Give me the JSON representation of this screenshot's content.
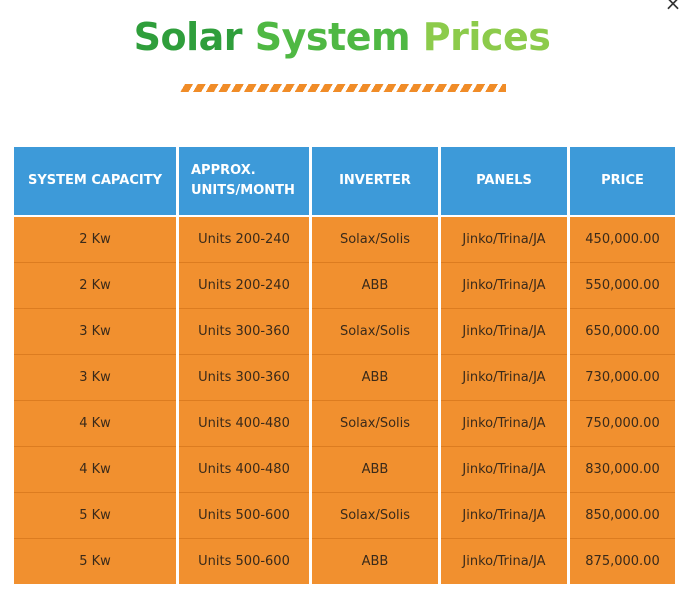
{
  "title": {
    "word1": "Solar",
    "word2": "System",
    "word3": "Prices"
  },
  "close_label": "×",
  "colors": {
    "title_dark_green": "#2f9e3b",
    "title_green": "#4fb843",
    "title_light_green": "#8ccb4b",
    "divider_orange": "#f08c28",
    "header_blue": "#3d9ad9",
    "row_orange": "#f1902f"
  },
  "table": {
    "headers": [
      "SYSTEM CAPACITY",
      "APPROX. UNITS/MONTH",
      "INVERTER",
      "PANELS",
      "PRICE"
    ],
    "rows": [
      [
        "2 Kw",
        "Units 200-240",
        "Solax/Solis",
        "Jinko/Trina/JA",
        "450,000.00"
      ],
      [
        "2 Kw",
        "Units 200-240",
        "ABB",
        "Jinko/Trina/JA",
        "550,000.00"
      ],
      [
        "3 Kw",
        "Units 300-360",
        "Solax/Solis",
        "Jinko/Trina/JA",
        "650,000.00"
      ],
      [
        "3 Kw",
        "Units 300-360",
        "ABB",
        "Jinko/Trina/JA",
        "730,000.00"
      ],
      [
        "4 Kw",
        "Units 400-480",
        "Solax/Solis",
        "Jinko/Trina/JA",
        "750,000.00"
      ],
      [
        "4 Kw",
        "Units 400-480",
        "ABB",
        "Jinko/Trina/JA",
        "830,000.00"
      ],
      [
        "5 Kw",
        "Units 500-600",
        "Solax/Solis",
        "Jinko/Trina/JA",
        "850,000.00"
      ],
      [
        "5 Kw",
        "Units 500-600",
        "ABB",
        "Jinko/Trina/JA",
        "875,000.00"
      ]
    ]
  }
}
